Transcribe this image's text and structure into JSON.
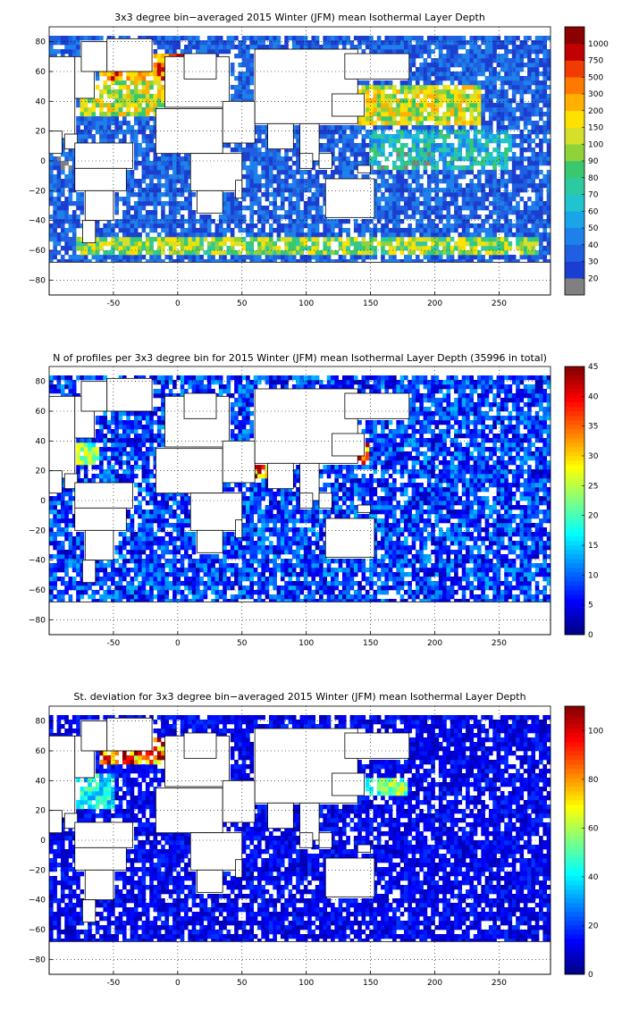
{
  "chart_data": [
    {
      "type": "heatmap",
      "title": "3x3 degree bin−averaged 2015 Winter (JFM) mean Isothermal Layer Depth",
      "x_ticks": [
        "-50",
        "0",
        "50",
        "100",
        "150",
        "200",
        "250"
      ],
      "y_ticks": [
        "80",
        "60",
        "40",
        "20",
        "0",
        "−20",
        "−40",
        "−60",
        "−80"
      ],
      "x_values": [
        -50,
        0,
        50,
        100,
        150,
        200,
        250
      ],
      "y_values": [
        80,
        60,
        40,
        20,
        0,
        -20,
        -40,
        -60,
        -80
      ],
      "xlim": [
        -100,
        290
      ],
      "ylim": [
        -90,
        90
      ],
      "grid": true,
      "colorbar": {
        "scale": "categorical",
        "labels": [
          "20",
          "30",
          "40",
          "50",
          "60",
          "70",
          "80",
          "90",
          "100",
          "150",
          "200",
          "300",
          "500",
          "750",
          "1000"
        ],
        "colors": [
          "#808080",
          "#1a3fd0",
          "#1f5fe0",
          "#1e80ea",
          "#1aa5e8",
          "#20c4cf",
          "#2dc9a0",
          "#39c86e",
          "#8fd23a",
          "#d6e02a",
          "#ffe100",
          "#ffb000",
          "#ff7800",
          "#f03c00",
          "#c00000",
          "#8b0000"
        ]
      },
      "pattern": "ocean bins mostly 30–60 m (blue); deep 100–1000 m (yellow/red) in North Atlantic 40–70N and North Pacific 25–50N; yellow band near 55–60S; gray equatorial bins",
      "regions": [
        {
          "lon": [
            -60,
            10
          ],
          "lat": [
            55,
            72
          ],
          "level": 12
        },
        {
          "lon": [
            -75,
            -10
          ],
          "lat": [
            30,
            55
          ],
          "level": 9
        },
        {
          "lon": [
            140,
            235
          ],
          "lat": [
            25,
            50
          ],
          "level": 9
        },
        {
          "lon": [
            -80,
            280
          ],
          "lat": [
            -63,
            -52
          ],
          "level": 8
        },
        {
          "lon": [
            150,
            260
          ],
          "lat": [
            -5,
            20
          ],
          "level": 5
        }
      ]
    },
    {
      "type": "heatmap",
      "title": "N of profiles per 3x3 degree bin for 2015 Winter (JFM) mean Isothermal Layer Depth  (35996 in total)",
      "x_ticks": [
        "-50",
        "0",
        "50",
        "100",
        "150",
        "200",
        "250"
      ],
      "y_ticks": [
        "80",
        "60",
        "40",
        "20",
        "0",
        "−20",
        "−40",
        "−60",
        "−80"
      ],
      "x_values": [
        -50,
        0,
        50,
        100,
        150,
        200,
        250
      ],
      "y_values": [
        80,
        60,
        40,
        20,
        0,
        -20,
        -40,
        -60,
        -80
      ],
      "xlim": [
        -100,
        290
      ],
      "ylim": [
        -90,
        90
      ],
      "grid": true,
      "colorbar": {
        "scale": "linear",
        "min": 0,
        "max": 45,
        "tick_labels": [
          "0",
          "5",
          "10",
          "15",
          "20",
          "25",
          "30",
          "35",
          "40",
          "45"
        ],
        "tick_values": [
          0,
          5,
          10,
          15,
          20,
          25,
          30,
          35,
          40,
          45
        ]
      },
      "pattern": "mostly 2–15 profiles per bin; dense clusters (40+) in Mediterranean, Arabian Sea and Kuroshio region",
      "regions": [
        {
          "lon": [
            0,
            30
          ],
          "lat": [
            35,
            45
          ],
          "level": 40
        },
        {
          "lon": [
            55,
            75
          ],
          "lat": [
            15,
            25
          ],
          "level": 38
        },
        {
          "lon": [
            130,
            150
          ],
          "lat": [
            25,
            40
          ],
          "level": 40
        },
        {
          "lon": [
            -80,
            -60
          ],
          "lat": [
            25,
            40
          ],
          "level": 25
        }
      ]
    },
    {
      "type": "heatmap",
      "title": "St. deviation for 3x3 degree bin−averaged 2015 Winter (JFM) mean Isothermal Layer Depth",
      "x_ticks": [
        "-50",
        "0",
        "50",
        "100",
        "150",
        "200",
        "250"
      ],
      "y_ticks": [
        "80",
        "60",
        "40",
        "20",
        "0",
        "−20",
        "−40",
        "−60",
        "−80"
      ],
      "x_values": [
        -50,
        0,
        50,
        100,
        150,
        200,
        250
      ],
      "y_values": [
        80,
        60,
        40,
        20,
        0,
        -20,
        -40,
        -60,
        -80
      ],
      "xlim": [
        -100,
        290
      ],
      "ylim": [
        -90,
        90
      ],
      "grid": true,
      "colorbar": {
        "scale": "linear",
        "min": 0,
        "max": 110,
        "tick_labels": [
          "0",
          "20",
          "40",
          "60",
          "80",
          "100"
        ],
        "tick_values": [
          0,
          20,
          40,
          60,
          80,
          100
        ]
      },
      "pattern": "mostly 5–20 (dark blue); high variability (80–110) in North Atlantic 50–70N, Mediterranean and North Pacific near 35N",
      "regions": [
        {
          "lon": [
            -60,
            -10
          ],
          "lat": [
            50,
            68
          ],
          "level": 100
        },
        {
          "lon": [
            0,
            30
          ],
          "lat": [
            35,
            45
          ],
          "level": 90
        },
        {
          "lon": [
            140,
            180
          ],
          "lat": [
            30,
            42
          ],
          "level": 60
        },
        {
          "lon": [
            -80,
            -50
          ],
          "lat": [
            20,
            45
          ],
          "level": 45
        }
      ]
    }
  ]
}
